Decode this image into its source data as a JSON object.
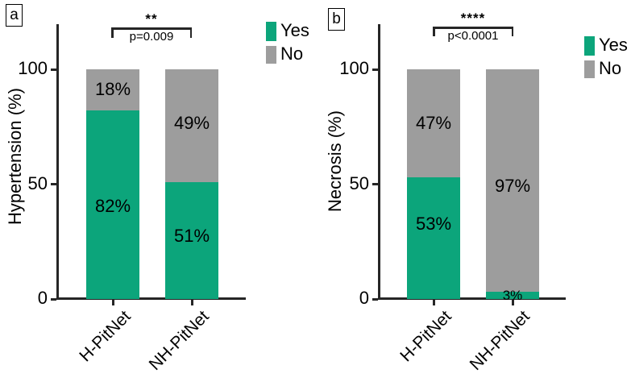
{
  "legend": {
    "yes": "Yes",
    "no": "No"
  },
  "colors": {
    "yes": "#0ca57b",
    "no": "#9d9d9d",
    "axis": "#262626",
    "text": "#000000",
    "background": "#ffffff"
  },
  "chart_data": [
    {
      "type": "bar",
      "subtype": "stacked-percentage",
      "panel_letter": "a",
      "ylabel": "Hypertension (%)",
      "ylim": [
        0,
        100
      ],
      "ytick_labels": [
        "0",
        "50",
        "100"
      ],
      "categories": [
        "H-PitNet",
        "NH-PitNet"
      ],
      "series": [
        {
          "name": "Yes",
          "values": [
            82,
            51
          ]
        },
        {
          "name": "No",
          "values": [
            18,
            49
          ]
        }
      ],
      "segment_labels": [
        [
          "82%",
          "18%"
        ],
        [
          "51%",
          "49%"
        ]
      ],
      "significance": {
        "stars": "**",
        "p_label": "p=0.009"
      },
      "legend_entries": [
        "Yes",
        "No"
      ],
      "legend_position": "right-top",
      "grid": false
    },
    {
      "type": "bar",
      "subtype": "stacked-percentage",
      "panel_letter": "b",
      "ylabel": "Necrosis (%)",
      "ylim": [
        0,
        100
      ],
      "ytick_labels": [
        "0",
        "50",
        "100"
      ],
      "categories": [
        "H-PitNet",
        "NH-PitNet"
      ],
      "series": [
        {
          "name": "Yes",
          "values": [
            53,
            3
          ]
        },
        {
          "name": "No",
          "values": [
            47,
            97
          ]
        }
      ],
      "segment_labels": [
        [
          "53%",
          "47%"
        ],
        [
          "3%",
          "97%"
        ]
      ],
      "significance": {
        "stars": "****",
        "p_label": "p<0.0001"
      },
      "legend_entries": [
        "Yes",
        "No"
      ],
      "legend_position": "right-top",
      "grid": false
    }
  ]
}
